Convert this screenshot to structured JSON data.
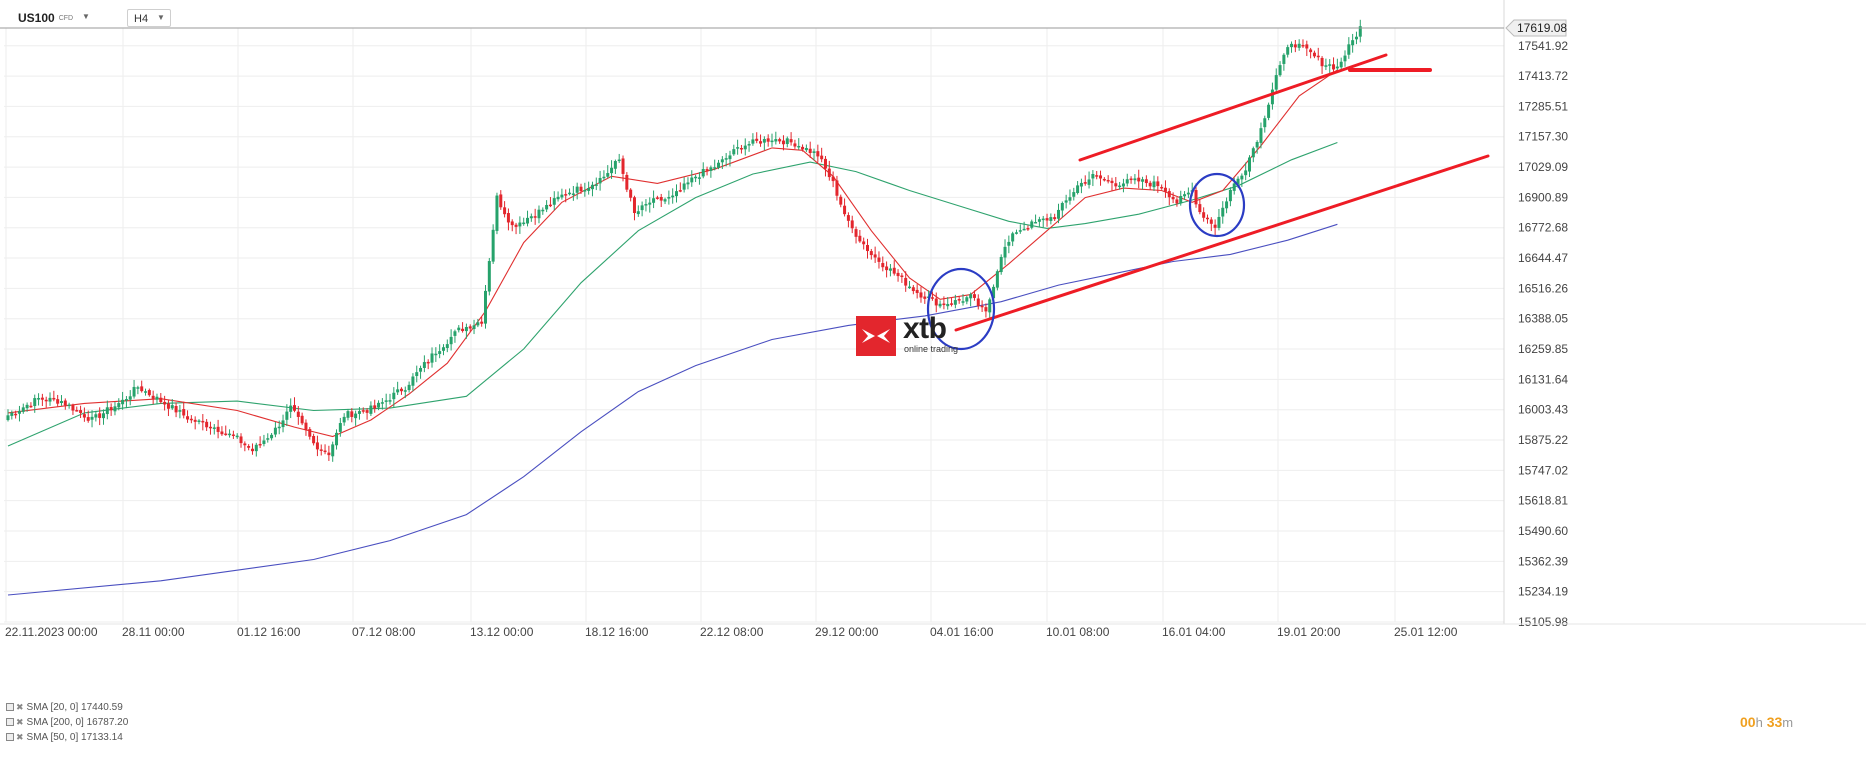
{
  "toolbar": {
    "symbol": "US100",
    "instrument_type": "CFD",
    "timeframe": "H4"
  },
  "current_price": "17619.08",
  "timer": {
    "hours": "00",
    "h_unit": "h",
    "minutes": "33",
    "m_unit": "m"
  },
  "logo": {
    "name": "xtb",
    "tagline": "online trading"
  },
  "legend": [
    {
      "label": "SMA",
      "params": "[20, 0]",
      "value": "17440.59"
    },
    {
      "label": "SMA",
      "params": "[200, 0]",
      "value": "16787.20"
    },
    {
      "label": "SMA",
      "params": "[50, 0]",
      "value": "17133.14"
    }
  ],
  "colors": {
    "up": "#26a26b",
    "down": "#e3262d",
    "sma20": "#e03030",
    "sma50": "#2fa36e",
    "sma200": "#4a4fc0",
    "trendline": "#ee1c25",
    "circle": "#2b3cc4"
  },
  "chart_data": {
    "type": "candlestick",
    "y_axis_ticks": [
      "17541.92",
      "17413.72",
      "17285.51",
      "17157.30",
      "17029.09",
      "16900.89",
      "16772.68",
      "16644.47",
      "16516.26",
      "16388.05",
      "16259.85",
      "16131.64",
      "16003.43",
      "15875.22",
      "15747.02",
      "15618.81",
      "15490.60",
      "15362.39",
      "15234.19",
      "15105.98"
    ],
    "ylim": [
      15105.98,
      17617.0
    ],
    "x_axis_labels": [
      "22.11.2023  00:00",
      "28.11 00:00",
      "01.12 16:00",
      "07.12 08:00",
      "13.12 00:00",
      "18.12 16:00",
      "22.12 08:00",
      "29.12 00:00",
      "04.01 16:00",
      "10.01 08:00",
      "16.01 04:00",
      "19.01 20:00",
      "25.01 12:00"
    ],
    "anchors": [
      [
        0,
        15980
      ],
      [
        8,
        16050
      ],
      [
        14,
        16040
      ],
      [
        18,
        16000
      ],
      [
        22,
        15960
      ],
      [
        30,
        16040
      ],
      [
        34,
        16100
      ],
      [
        38,
        16060
      ],
      [
        44,
        16000
      ],
      [
        48,
        15960
      ],
      [
        54,
        15930
      ],
      [
        60,
        15880
      ],
      [
        64,
        15830
      ],
      [
        70,
        15920
      ],
      [
        74,
        16010
      ],
      [
        80,
        15860
      ],
      [
        84,
        15820
      ],
      [
        88,
        15980
      ],
      [
        96,
        16010
      ],
      [
        104,
        16100
      ],
      [
        112,
        16250
      ],
      [
        118,
        16340
      ],
      [
        124,
        16380
      ],
      [
        128,
        16900
      ],
      [
        132,
        16780
      ],
      [
        140,
        16850
      ],
      [
        146,
        16920
      ],
      [
        152,
        16950
      ],
      [
        156,
        16990
      ],
      [
        160,
        17060
      ],
      [
        164,
        16830
      ],
      [
        168,
        16880
      ],
      [
        174,
        16900
      ],
      [
        180,
        16990
      ],
      [
        186,
        17040
      ],
      [
        192,
        17120
      ],
      [
        200,
        17150
      ],
      [
        206,
        17130
      ],
      [
        212,
        17080
      ],
      [
        216,
        16960
      ],
      [
        220,
        16790
      ],
      [
        226,
        16660
      ],
      [
        232,
        16580
      ],
      [
        238,
        16500
      ],
      [
        244,
        16450
      ],
      [
        248,
        16460
      ],
      [
        252,
        16480
      ],
      [
        256,
        16410
      ],
      [
        260,
        16660
      ],
      [
        264,
        16760
      ],
      [
        270,
        16800
      ],
      [
        274,
        16820
      ],
      [
        280,
        16950
      ],
      [
        284,
        16990
      ],
      [
        290,
        16960
      ],
      [
        296,
        16970
      ],
      [
        302,
        16950
      ],
      [
        306,
        16880
      ],
      [
        310,
        16930
      ],
      [
        312,
        16840
      ],
      [
        316,
        16780
      ],
      [
        320,
        16930
      ],
      [
        324,
        17030
      ],
      [
        328,
        17190
      ],
      [
        332,
        17420
      ],
      [
        336,
        17560
      ],
      [
        340,
        17520
      ],
      [
        344,
        17470
      ],
      [
        348,
        17450
      ],
      [
        354,
        17619
      ]
    ],
    "series": [
      {
        "name": "SMA [20, 0]",
        "points": [
          [
            0,
            15990
          ],
          [
            20,
            16030
          ],
          [
            40,
            16050
          ],
          [
            60,
            16000
          ],
          [
            75,
            15930
          ],
          [
            85,
            15890
          ],
          [
            95,
            15960
          ],
          [
            105,
            16070
          ],
          [
            115,
            16200
          ],
          [
            125,
            16420
          ],
          [
            135,
            16710
          ],
          [
            145,
            16880
          ],
          [
            158,
            16990
          ],
          [
            170,
            16960
          ],
          [
            185,
            17020
          ],
          [
            200,
            17110
          ],
          [
            208,
            17100
          ],
          [
            216,
            16990
          ],
          [
            226,
            16760
          ],
          [
            236,
            16560
          ],
          [
            244,
            16470
          ],
          [
            252,
            16490
          ],
          [
            262,
            16620
          ],
          [
            272,
            16760
          ],
          [
            282,
            16900
          ],
          [
            292,
            16940
          ],
          [
            302,
            16930
          ],
          [
            310,
            16880
          ],
          [
            318,
            16930
          ],
          [
            328,
            17120
          ],
          [
            338,
            17330
          ],
          [
            348,
            17440
          ]
        ]
      },
      {
        "name": "SMA [50, 0]",
        "points": [
          [
            0,
            15850
          ],
          [
            20,
            15990
          ],
          [
            40,
            16030
          ],
          [
            60,
            16040
          ],
          [
            80,
            16000
          ],
          [
            100,
            16010
          ],
          [
            120,
            16060
          ],
          [
            135,
            16260
          ],
          [
            150,
            16540
          ],
          [
            165,
            16760
          ],
          [
            180,
            16900
          ],
          [
            195,
            17000
          ],
          [
            210,
            17050
          ],
          [
            222,
            17010
          ],
          [
            236,
            16930
          ],
          [
            250,
            16860
          ],
          [
            262,
            16800
          ],
          [
            272,
            16770
          ],
          [
            282,
            16790
          ],
          [
            296,
            16830
          ],
          [
            310,
            16890
          ],
          [
            322,
            16950
          ],
          [
            336,
            17060
          ],
          [
            348,
            17133
          ]
        ]
      },
      {
        "name": "SMA [200, 0]",
        "points": [
          [
            0,
            15220
          ],
          [
            40,
            15280
          ],
          [
            80,
            15370
          ],
          [
            100,
            15450
          ],
          [
            120,
            15560
          ],
          [
            135,
            15720
          ],
          [
            150,
            15910
          ],
          [
            165,
            16080
          ],
          [
            180,
            16190
          ],
          [
            200,
            16300
          ],
          [
            220,
            16360
          ],
          [
            240,
            16400
          ],
          [
            260,
            16460
          ],
          [
            275,
            16530
          ],
          [
            290,
            16580
          ],
          [
            305,
            16630
          ],
          [
            320,
            16660
          ],
          [
            335,
            16720
          ],
          [
            348,
            16787
          ]
        ]
      }
    ],
    "trendlines": [
      [
        [
          1080,
          160
        ],
        [
          1386,
          55
        ]
      ],
      [
        [
          956,
          330
        ],
        [
          1488,
          156
        ]
      ],
      [
        [
          1350,
          70
        ],
        [
          1430,
          70
        ]
      ]
    ],
    "annotations": [
      {
        "type": "ellipse",
        "cx": 961,
        "cy": 309,
        "rx": 33,
        "ry": 40
      },
      {
        "type": "ellipse",
        "cx": 1217,
        "cy": 205,
        "rx": 27,
        "ry": 31
      }
    ]
  }
}
